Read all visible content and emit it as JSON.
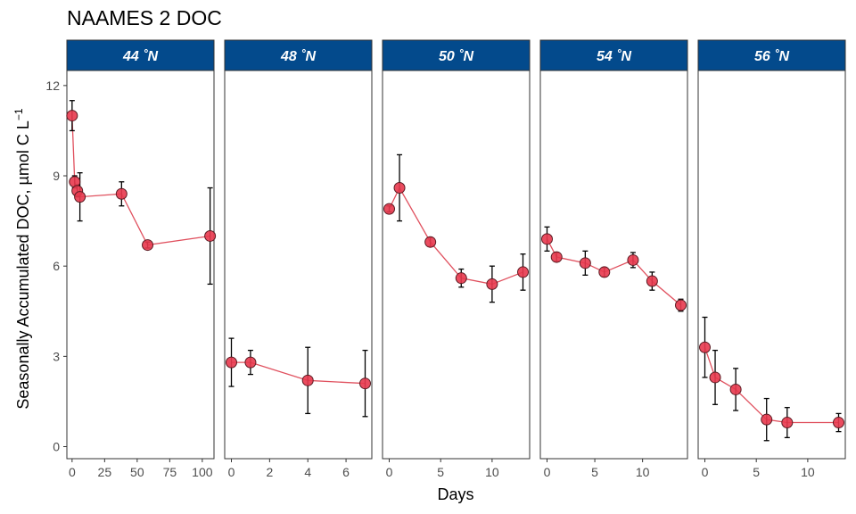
{
  "chart_data": {
    "type": "line",
    "title": "NAAMES 2 DOC",
    "xlabel": "Days",
    "ylabel": "Seasonally Accumulated DOC, µmol C L",
    "ylabel_superscript": "−1",
    "ylim": [
      -0.4,
      12.5
    ],
    "yticks": [
      0,
      3,
      6,
      9,
      12
    ],
    "grid": false,
    "facet_strip_color": "#034a8c",
    "facet_strip_text_color": "#ffffff",
    "line_color": "#e0505e",
    "point_fill": "#e8394e",
    "point_stroke": "#5a1b22",
    "errorbar_color": "#000000",
    "panels": [
      {
        "label": "44 ˚N",
        "xlim": [
          -4,
          109
        ],
        "xticks": [
          0,
          25,
          50,
          75,
          100
        ],
        "points": [
          {
            "x": 0,
            "y": 11.0,
            "ymin": 10.5,
            "ymax": 11.5
          },
          {
            "x": 2,
            "y": 8.8,
            "ymin": 8.6,
            "ymax": 9.0
          },
          {
            "x": 4,
            "y": 8.5,
            "ymin": 8.3,
            "ymax": 8.7
          },
          {
            "x": 6,
            "y": 8.3,
            "ymin": 7.5,
            "ymax": 9.1
          },
          {
            "x": 38,
            "y": 8.4,
            "ymin": 8.0,
            "ymax": 8.8
          },
          {
            "x": 58,
            "y": 6.7,
            "ymin": 6.6,
            "ymax": 6.8
          },
          {
            "x": 106,
            "y": 7.0,
            "ymin": 5.4,
            "ymax": 8.6
          }
        ]
      },
      {
        "label": "48 ˚N",
        "xlim": [
          -0.35,
          7.35
        ],
        "xticks": [
          0,
          2,
          4,
          6
        ],
        "points": [
          {
            "x": 0,
            "y": 2.8,
            "ymin": 2.0,
            "ymax": 3.6
          },
          {
            "x": 1,
            "y": 2.8,
            "ymin": 2.4,
            "ymax": 3.2
          },
          {
            "x": 4,
            "y": 2.2,
            "ymin": 1.1,
            "ymax": 3.3
          },
          {
            "x": 7,
            "y": 2.1,
            "ymin": 1.0,
            "ymax": 3.2
          }
        ]
      },
      {
        "label": "50 ˚N",
        "xlim": [
          -0.65,
          13.65
        ],
        "xticks": [
          0,
          5,
          10
        ],
        "points": [
          {
            "x": 0,
            "y": 7.9,
            "ymin": 7.8,
            "ymax": 8.0
          },
          {
            "x": 1,
            "y": 8.6,
            "ymin": 7.5,
            "ymax": 9.7
          },
          {
            "x": 4,
            "y": 6.8,
            "ymin": 6.65,
            "ymax": 6.95
          },
          {
            "x": 7,
            "y": 5.6,
            "ymin": 5.3,
            "ymax": 5.9
          },
          {
            "x": 10,
            "y": 5.4,
            "ymin": 4.8,
            "ymax": 6.0
          },
          {
            "x": 13,
            "y": 5.8,
            "ymin": 5.2,
            "ymax": 6.4
          }
        ]
      },
      {
        "label": "54 ˚N",
        "xlim": [
          -0.7,
          14.7
        ],
        "xticks": [
          0,
          5,
          10
        ],
        "points": [
          {
            "x": 0,
            "y": 6.9,
            "ymin": 6.5,
            "ymax": 7.3
          },
          {
            "x": 1,
            "y": 6.3,
            "ymin": 6.15,
            "ymax": 6.45
          },
          {
            "x": 4,
            "y": 6.1,
            "ymin": 5.7,
            "ymax": 6.5
          },
          {
            "x": 6,
            "y": 5.8,
            "ymin": 5.65,
            "ymax": 5.95
          },
          {
            "x": 9,
            "y": 6.2,
            "ymin": 5.95,
            "ymax": 6.45
          },
          {
            "x": 11,
            "y": 5.5,
            "ymin": 5.2,
            "ymax": 5.8
          },
          {
            "x": 14,
            "y": 4.7,
            "ymin": 4.5,
            "ymax": 4.9
          }
        ]
      },
      {
        "label": "56 ˚N",
        "xlim": [
          -0.65,
          13.65
        ],
        "xticks": [
          0,
          5,
          10
        ],
        "points": [
          {
            "x": 0,
            "y": 3.3,
            "ymin": 2.3,
            "ymax": 4.3
          },
          {
            "x": 1,
            "y": 2.3,
            "ymin": 1.4,
            "ymax": 3.2
          },
          {
            "x": 3,
            "y": 1.9,
            "ymin": 1.2,
            "ymax": 2.6
          },
          {
            "x": 6,
            "y": 0.9,
            "ymin": 0.2,
            "ymax": 1.6
          },
          {
            "x": 8,
            "y": 0.8,
            "ymin": 0.3,
            "ymax": 1.3
          },
          {
            "x": 13,
            "y": 0.8,
            "ymin": 0.5,
            "ymax": 1.1
          }
        ]
      }
    ]
  }
}
